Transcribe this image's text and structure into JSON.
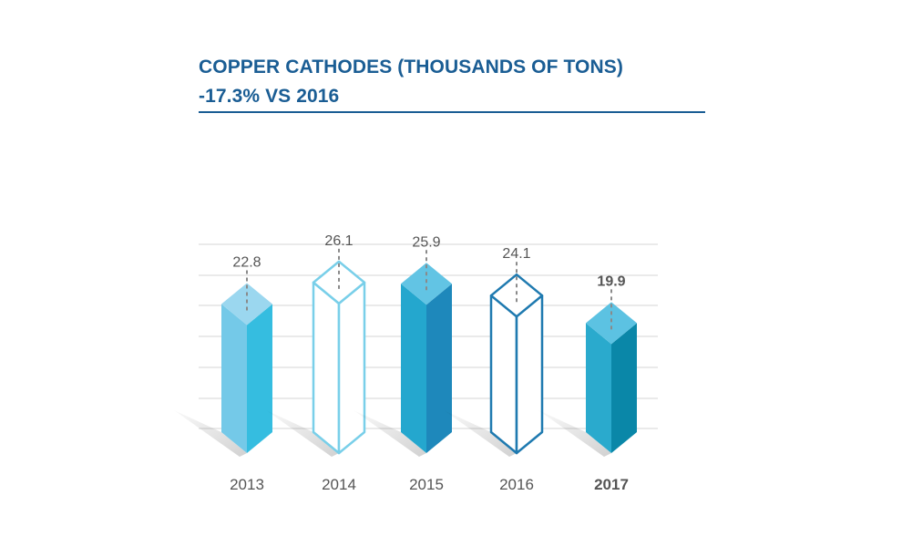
{
  "chart_data": {
    "type": "bar",
    "title": "COPPER CATHODES (THOUSANDS OF TONS)",
    "subtitle": "-17.3% VS 2016",
    "categories": [
      "2013",
      "2014",
      "2015",
      "2016",
      "2017"
    ],
    "values": [
      22.8,
      26.1,
      25.9,
      24.1,
      19.9
    ],
    "value_labels": [
      "22.8",
      "26.1",
      "25.9",
      "24.1",
      "19.9"
    ],
    "highlight_category": "2017",
    "grid": true,
    "bar_styles": [
      "filled-light",
      "outline-light",
      "filled-mid",
      "outline-dark",
      "filled-dark"
    ],
    "colors": {
      "title": "#1a5d94",
      "grid": "#d6d6d6",
      "label": "#555555",
      "dash": "#8a8a8a"
    }
  }
}
